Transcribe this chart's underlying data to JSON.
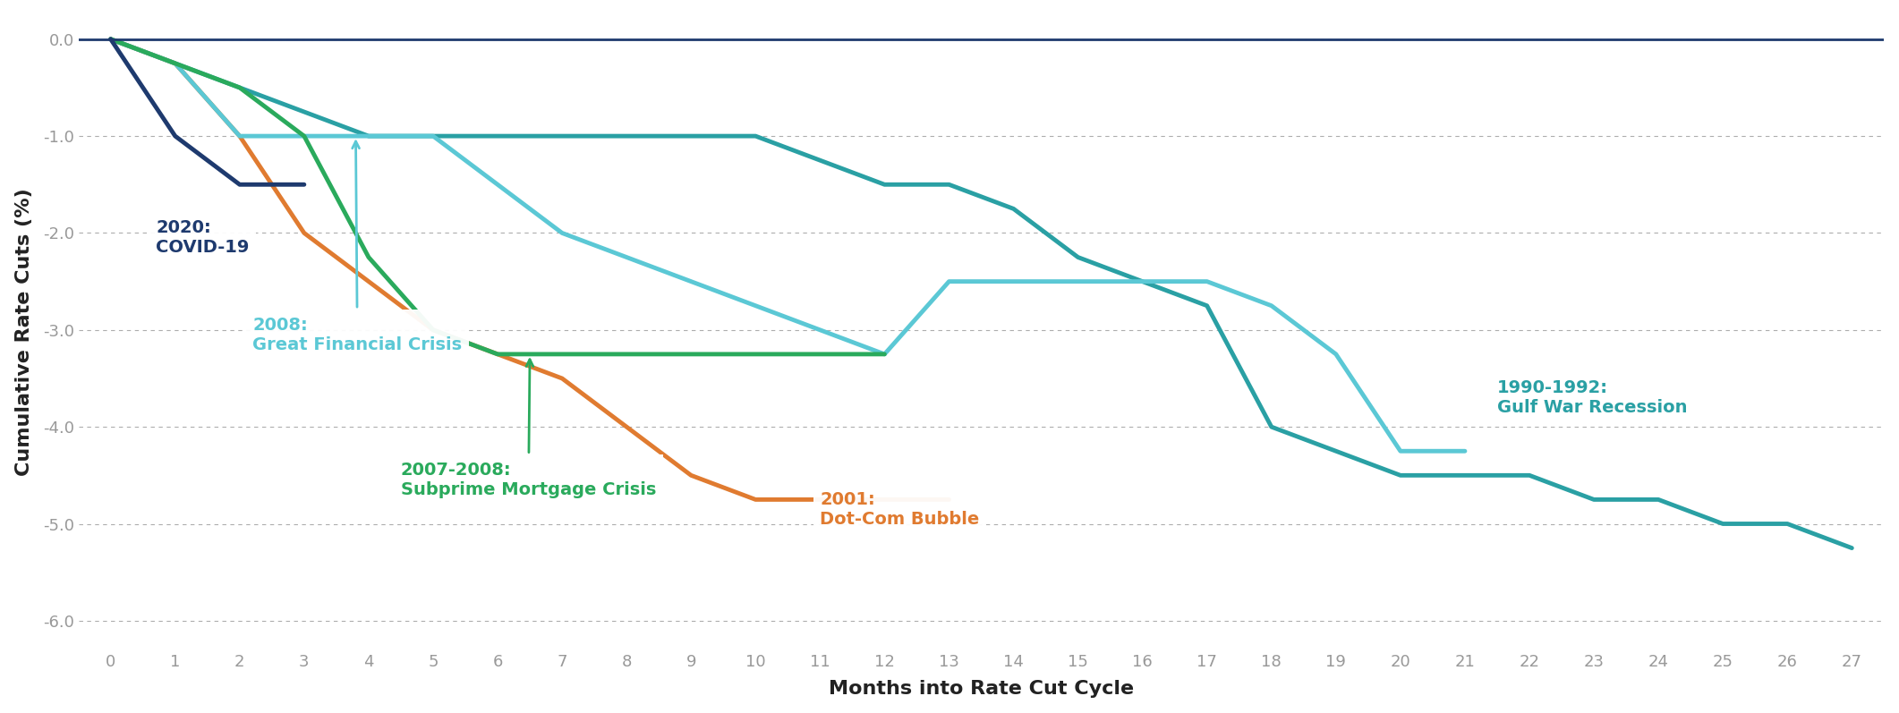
{
  "xlabel": "Months into Rate Cut Cycle",
  "ylabel": "Cumulative Rate Cuts (%)",
  "background_color": "#ffffff",
  "plot_bg_color": "#ffffff",
  "ylim": [
    -6.3,
    0.25
  ],
  "xlim": [
    -0.5,
    27.5
  ],
  "yticks": [
    0.0,
    -1.0,
    -2.0,
    -3.0,
    -4.0,
    -5.0,
    -6.0
  ],
  "xticks": [
    0,
    1,
    2,
    3,
    4,
    5,
    6,
    7,
    8,
    9,
    10,
    11,
    12,
    13,
    14,
    15,
    16,
    17,
    18,
    19,
    20,
    21,
    22,
    23,
    24,
    25,
    26,
    27
  ],
  "series": [
    {
      "label": "2020: COVID-19",
      "color": "#1e3a6e",
      "linewidth": 3.5,
      "x": [
        0,
        1,
        2,
        3
      ],
      "y": [
        0.0,
        -1.0,
        -1.5,
        -1.5
      ]
    },
    {
      "label": "2008: Great Financial Crisis",
      "color": "#5bc8d5",
      "linewidth": 3.5,
      "x": [
        0,
        1,
        2,
        3,
        4,
        5,
        6,
        7,
        8,
        9,
        10,
        11,
        12,
        13,
        14,
        15,
        16,
        17,
        18,
        19,
        20,
        21
      ],
      "y": [
        0.0,
        -0.25,
        -1.0,
        -1.0,
        -1.0,
        -1.0,
        -1.5,
        -2.0,
        -2.25,
        -2.5,
        -2.75,
        -3.0,
        -3.25,
        -2.5,
        -2.5,
        -2.5,
        -2.5,
        -2.5,
        -2.75,
        -3.25,
        -4.25,
        -4.25
      ]
    },
    {
      "label": "2007-2008: Subprime Mortgage Crisis",
      "color": "#2aaa5c",
      "linewidth": 3.5,
      "x": [
        0,
        1,
        2,
        3,
        4,
        5,
        6,
        7,
        8,
        9,
        10,
        11,
        12
      ],
      "y": [
        0.0,
        -0.25,
        -0.5,
        -1.0,
        -2.25,
        -3.0,
        -3.25,
        -3.25,
        -3.25,
        -3.25,
        -3.25,
        -3.25,
        -3.25
      ]
    },
    {
      "label": "2001: Dot-Com Bubble",
      "color": "#e07b30",
      "linewidth": 3.5,
      "x": [
        0,
        1,
        2,
        3,
        4,
        5,
        6,
        7,
        8,
        9,
        10,
        11,
        12,
        13
      ],
      "y": [
        0.0,
        -0.25,
        -1.0,
        -2.0,
        -2.5,
        -3.0,
        -3.25,
        -3.5,
        -4.0,
        -4.5,
        -4.75,
        -4.75,
        -4.75,
        -4.75
      ]
    },
    {
      "label": "1990-1992: Gulf War Recession",
      "color": "#2aa0a4",
      "linewidth": 3.5,
      "x": [
        0,
        1,
        2,
        3,
        4,
        5,
        6,
        7,
        8,
        9,
        10,
        11,
        12,
        13,
        14,
        15,
        16,
        17,
        18,
        19,
        20,
        21,
        22,
        23,
        24,
        25,
        26,
        27
      ],
      "y": [
        0.0,
        -0.25,
        -0.5,
        -0.75,
        -1.0,
        -1.0,
        -1.0,
        -1.0,
        -1.0,
        -1.0,
        -1.0,
        -1.25,
        -1.5,
        -1.5,
        -1.75,
        -2.25,
        -2.5,
        -2.75,
        -4.0,
        -4.25,
        -4.5,
        -4.5,
        -4.5,
        -4.75,
        -4.75,
        -5.0,
        -5.0,
        -5.25
      ]
    }
  ],
  "hline_color": "#1e3a6e",
  "grid_color": "#999999",
  "tick_color": "#999999",
  "axis_label_color": "#222222",
  "tick_fontsize": 13,
  "axis_label_fontsize": 16
}
